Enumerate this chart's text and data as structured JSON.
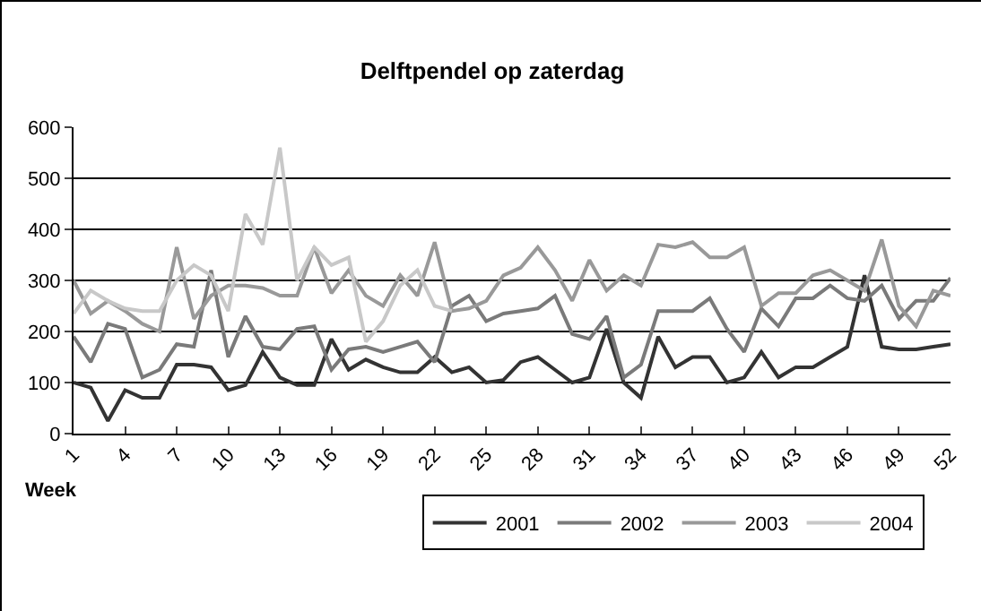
{
  "chart_data": {
    "type": "line",
    "title": "Delftpendel op zaterdag",
    "xlabel": "Week",
    "x": [
      1,
      2,
      3,
      4,
      5,
      6,
      7,
      8,
      9,
      10,
      11,
      12,
      13,
      14,
      15,
      16,
      17,
      18,
      19,
      20,
      21,
      22,
      23,
      24,
      25,
      26,
      27,
      28,
      29,
      30,
      31,
      32,
      33,
      34,
      35,
      36,
      37,
      38,
      39,
      40,
      41,
      42,
      43,
      44,
      45,
      46,
      47,
      48,
      49,
      50,
      51,
      52
    ],
    "xlim": [
      1,
      52
    ],
    "xticks": [
      1,
      4,
      7,
      10,
      13,
      16,
      19,
      22,
      25,
      28,
      31,
      34,
      37,
      40,
      43,
      46,
      49,
      52
    ],
    "ylim": [
      0,
      600
    ],
    "yticks": [
      0,
      100,
      200,
      300,
      400,
      500,
      600
    ],
    "grid": "y",
    "legend": "bottom right",
    "marker": "none",
    "line_style": "solid",
    "series": [
      {
        "name": "2001",
        "color": "#333333",
        "values": [
          100,
          90,
          25,
          85,
          70,
          70,
          135,
          135,
          130,
          85,
          95,
          160,
          110,
          95,
          95,
          185,
          125,
          145,
          130,
          120,
          120,
          150,
          120,
          130,
          100,
          105,
          140,
          150,
          125,
          100,
          110,
          205,
          100,
          70,
          190,
          130,
          150,
          150,
          100,
          110,
          160,
          110,
          130,
          130,
          150,
          170,
          310,
          170,
          165,
          165,
          170,
          175
        ]
      },
      {
        "name": "2002",
        "color": "#7a7a7a",
        "values": [
          190,
          140,
          215,
          205,
          110,
          125,
          175,
          170,
          320,
          150,
          230,
          170,
          165,
          205,
          210,
          125,
          165,
          170,
          160,
          170,
          180,
          140,
          250,
          270,
          220,
          235,
          240,
          245,
          270,
          195,
          185,
          230,
          110,
          135,
          240,
          240,
          240,
          265,
          205,
          160,
          245,
          210,
          265,
          265,
          290,
          265,
          260,
          290,
          225,
          260,
          260,
          305
        ]
      },
      {
        "name": "2003",
        "color": "#999999",
        "values": [
          300,
          235,
          260,
          240,
          215,
          200,
          365,
          225,
          270,
          290,
          290,
          285,
          270,
          270,
          365,
          275,
          320,
          270,
          250,
          310,
          270,
          375,
          240,
          245,
          260,
          310,
          325,
          365,
          320,
          260,
          340,
          280,
          310,
          290,
          370,
          365,
          375,
          345,
          345,
          365,
          250,
          275,
          275,
          310,
          320,
          300,
          280,
          380,
          250,
          210,
          280,
          270
        ]
      },
      {
        "name": "2004",
        "color": "#c8c8c8",
        "values": [
          235,
          280,
          260,
          245,
          240,
          240,
          300,
          330,
          310,
          240,
          430,
          370,
          560,
          300,
          365,
          330,
          345,
          180,
          220,
          290,
          320,
          250,
          240,
          null,
          null,
          null,
          null,
          null,
          null,
          null,
          null,
          null,
          null,
          null,
          null,
          null,
          null,
          null,
          null,
          null,
          null,
          null,
          null,
          null,
          null,
          null,
          null,
          null,
          null,
          null,
          null,
          null
        ]
      }
    ]
  }
}
